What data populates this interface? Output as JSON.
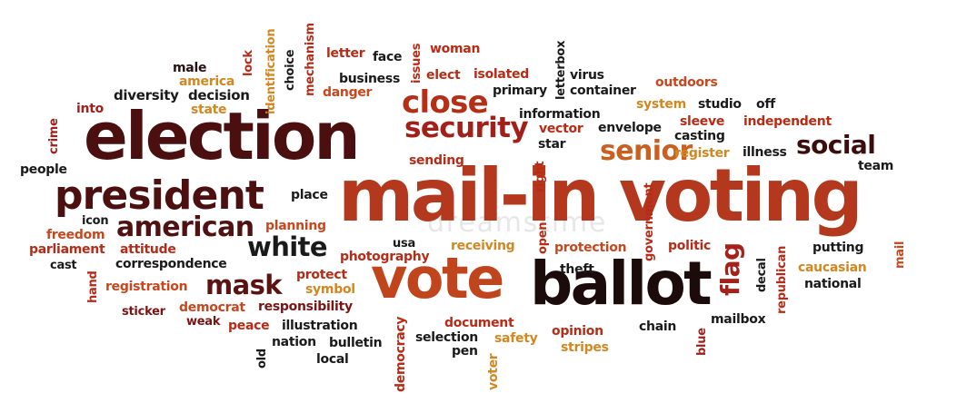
{
  "palette": {
    "dark_brown": "#3b0d0d",
    "maroon": "#7a1515",
    "red": "#b82b16",
    "orange_red": "#c9471c",
    "orange": "#d46a1e",
    "gold": "#cf8f22",
    "black": "#1a1a1a"
  },
  "words": [
    {
      "id": "w0",
      "text": "mail-in voting",
      "color": "#b4381d"
    },
    {
      "id": "w1",
      "text": "election",
      "color": "#4b0f0f"
    },
    {
      "id": "w2",
      "text": "ballot",
      "color": "#1c0b0b"
    },
    {
      "id": "w3",
      "text": "vote",
      "color": "#c0451c"
    },
    {
      "id": "w4",
      "text": "president",
      "color": "#4d1010"
    },
    {
      "id": "w5",
      "text": "close",
      "color": "#b42f16"
    },
    {
      "id": "w6",
      "text": "security",
      "color": "#a3201a"
    },
    {
      "id": "w7",
      "text": "american",
      "color": "#4f1111"
    },
    {
      "id": "w8",
      "text": "white",
      "color": "#1a1a1a"
    },
    {
      "id": "w9",
      "text": "mask",
      "color": "#5a1212"
    },
    {
      "id": "w10",
      "text": "senior",
      "color": "#c9601f"
    },
    {
      "id": "w11",
      "text": "social",
      "color": "#3b0d0d"
    },
    {
      "id": "w12",
      "text": "flag",
      "color": "#a6211a"
    },
    {
      "id": "w13",
      "text": "male",
      "color": "#2a1111"
    },
    {
      "id": "w14",
      "text": "america",
      "color": "#d4861f"
    },
    {
      "id": "w15",
      "text": "diversity",
      "color": "#1a1a1a"
    },
    {
      "id": "w16",
      "text": "decision",
      "color": "#1a1a1a"
    },
    {
      "id": "w17",
      "text": "into",
      "color": "#a3201a"
    },
    {
      "id": "w18",
      "text": "state",
      "color": "#d4861f"
    },
    {
      "id": "w19",
      "text": "crime",
      "color": "#a3201a"
    },
    {
      "id": "w20",
      "text": "people",
      "color": "#1a1a1a"
    },
    {
      "id": "w21",
      "text": "icon",
      "color": "#1a1a1a"
    },
    {
      "id": "w22",
      "text": "freedom",
      "color": "#c9471c"
    },
    {
      "id": "w23",
      "text": "parliament",
      "color": "#b82b16"
    },
    {
      "id": "w24",
      "text": "attitude",
      "color": "#b82b16"
    },
    {
      "id": "w25",
      "text": "cast",
      "color": "#1a1a1a"
    },
    {
      "id": "w26",
      "text": "correspondence",
      "color": "#1a1a1a"
    },
    {
      "id": "w27",
      "text": "hand",
      "color": "#b82b16"
    },
    {
      "id": "w28",
      "text": "registration",
      "color": "#c9471c"
    },
    {
      "id": "w29",
      "text": "sticker",
      "color": "#7a1515"
    },
    {
      "id": "w30",
      "text": "democrat",
      "color": "#c9471c"
    },
    {
      "id": "w31",
      "text": "weak",
      "color": "#7a1515"
    },
    {
      "id": "w32",
      "text": "peace",
      "color": "#b82b16"
    },
    {
      "id": "w33",
      "text": "illustration",
      "color": "#1a1a1a"
    },
    {
      "id": "w34",
      "text": "responsibility",
      "color": "#7a1515"
    },
    {
      "id": "w35",
      "text": "symbol",
      "color": "#d4861f"
    },
    {
      "id": "w36",
      "text": "protect",
      "color": "#b82b16"
    },
    {
      "id": "w37",
      "text": "photography",
      "color": "#b82b16"
    },
    {
      "id": "w38",
      "text": "planning",
      "color": "#c9471c"
    },
    {
      "id": "w39",
      "text": "place",
      "color": "#1a1a1a"
    },
    {
      "id": "w40",
      "text": "old",
      "color": "#1a1a1a"
    },
    {
      "id": "w41",
      "text": "nation",
      "color": "#1a1a1a"
    },
    {
      "id": "w42",
      "text": "bulletin",
      "color": "#1a1a1a"
    },
    {
      "id": "w43",
      "text": "local",
      "color": "#1a1a1a"
    },
    {
      "id": "w44",
      "text": "democracy",
      "color": "#b82b16"
    },
    {
      "id": "w45",
      "text": "usa",
      "color": "#1a1a1a"
    },
    {
      "id": "w46",
      "text": "receiving",
      "color": "#d4861f"
    },
    {
      "id": "w47",
      "text": "document",
      "color": "#b82b16"
    },
    {
      "id": "w48",
      "text": "selection",
      "color": "#1a1a1a"
    },
    {
      "id": "w49",
      "text": "pen",
      "color": "#1a1a1a"
    },
    {
      "id": "w50",
      "text": "safety",
      "color": "#d4861f"
    },
    {
      "id": "w51",
      "text": "voter",
      "color": "#d4861f"
    },
    {
      "id": "w52",
      "text": "opinion",
      "color": "#b82b16"
    },
    {
      "id": "w53",
      "text": "stripes",
      "color": "#d4861f"
    },
    {
      "id": "w54",
      "text": "chain",
      "color": "#1a1a1a"
    },
    {
      "id": "w55",
      "text": "blue",
      "color": "#a3201a"
    },
    {
      "id": "w56",
      "text": "mailbox",
      "color": "#1a1a1a"
    },
    {
      "id": "w57",
      "text": "republican",
      "color": "#b82b16"
    },
    {
      "id": "w58",
      "text": "decal",
      "color": "#1a1a1a"
    },
    {
      "id": "w59",
      "text": "national",
      "color": "#1a1a1a"
    },
    {
      "id": "w60",
      "text": "caucasian",
      "color": "#d4861f"
    },
    {
      "id": "w61",
      "text": "putting",
      "color": "#1a1a1a"
    },
    {
      "id": "w62",
      "text": "mail",
      "color": "#c9471c"
    },
    {
      "id": "w63",
      "text": "team",
      "color": "#1a1a1a"
    },
    {
      "id": "w64",
      "text": "politic",
      "color": "#b82b16"
    },
    {
      "id": "w65",
      "text": "protection",
      "color": "#c9471c"
    },
    {
      "id": "w66",
      "text": "theft",
      "color": "#1a1a1a"
    },
    {
      "id": "w67",
      "text": "government",
      "color": "#b82b16"
    },
    {
      "id": "w68",
      "text": "open",
      "color": "#b82b16"
    },
    {
      "id": "w69",
      "text": "right",
      "color": "#b82b16"
    },
    {
      "id": "w70",
      "text": "sending",
      "color": "#b82b16"
    },
    {
      "id": "w71",
      "text": "star",
      "color": "#1a1a1a"
    },
    {
      "id": "w72",
      "text": "vector",
      "color": "#b82b16"
    },
    {
      "id": "w73",
      "text": "envelope",
      "color": "#1a1a1a"
    },
    {
      "id": "w74",
      "text": "information",
      "color": "#1a1a1a"
    },
    {
      "id": "w75",
      "text": "register",
      "color": "#d4861f"
    },
    {
      "id": "w76",
      "text": "illness",
      "color": "#1a1a1a"
    },
    {
      "id": "w77",
      "text": "casting",
      "color": "#1a1a1a"
    },
    {
      "id": "w78",
      "text": "sleeve",
      "color": "#b82b16"
    },
    {
      "id": "w79",
      "text": "independent",
      "color": "#b82b16"
    },
    {
      "id": "w80",
      "text": "system",
      "color": "#d4861f"
    },
    {
      "id": "w81",
      "text": "studio",
      "color": "#1a1a1a"
    },
    {
      "id": "w82",
      "text": "off",
      "color": "#1a1a1a"
    },
    {
      "id": "w83",
      "text": "outdoors",
      "color": "#c9471c"
    },
    {
      "id": "w84",
      "text": "container",
      "color": "#1a1a1a"
    },
    {
      "id": "w85",
      "text": "virus",
      "color": "#1a1a1a"
    },
    {
      "id": "w86",
      "text": "primary",
      "color": "#1a1a1a"
    },
    {
      "id": "w87",
      "text": "letterbox",
      "color": "#1a1a1a"
    },
    {
      "id": "w88",
      "text": "isolated",
      "color": "#b82b16"
    },
    {
      "id": "w89",
      "text": "elect",
      "color": "#b82b16"
    },
    {
      "id": "w90",
      "text": "woman",
      "color": "#b82b16"
    },
    {
      "id": "w91",
      "text": "issues",
      "color": "#b82b16"
    },
    {
      "id": "w92",
      "text": "face",
      "color": "#1a1a1a"
    },
    {
      "id": "w93",
      "text": "letter",
      "color": "#b82b16"
    },
    {
      "id": "w94",
      "text": "business",
      "color": "#1a1a1a"
    },
    {
      "id": "w95",
      "text": "danger",
      "color": "#c9471c"
    },
    {
      "id": "w96",
      "text": "mechanism",
      "color": "#b82b16"
    },
    {
      "id": "w97",
      "text": "choice",
      "color": "#1a1a1a"
    },
    {
      "id": "w98",
      "text": "identification",
      "color": "#d4861f"
    },
    {
      "id": "w99",
      "text": "lock",
      "color": "#b82b16"
    }
  ],
  "watermark": "dreamstime"
}
